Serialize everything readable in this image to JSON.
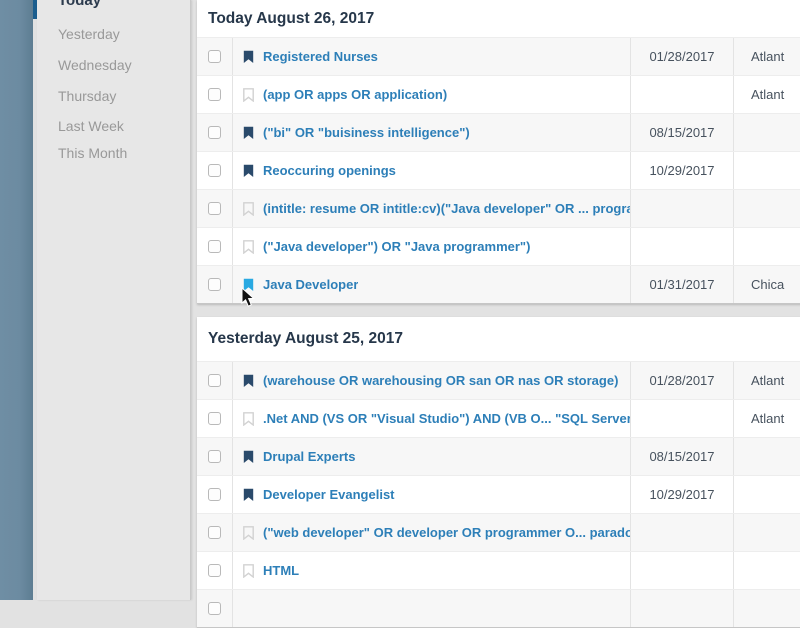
{
  "sidebar": {
    "items": [
      {
        "label": "Today",
        "active": true
      },
      {
        "label": "Yesterday",
        "active": false
      },
      {
        "label": "Wednesday",
        "active": false
      },
      {
        "label": "Thursday",
        "active": false
      },
      {
        "label": "Last Week",
        "active": false
      },
      {
        "label": "This Month",
        "active": false
      }
    ]
  },
  "sections": [
    {
      "title": "Today August 26, 2017",
      "rows": [
        {
          "name": "Registered Nurses",
          "bookmark": "filled",
          "date": "01/28/2017",
          "location": "Atlant"
        },
        {
          "name": "(app OR apps OR application)",
          "bookmark": "outline",
          "date": "",
          "location": "Atlant"
        },
        {
          "name": "(\"bi\" OR \"buisiness intelligence\")",
          "bookmark": "filled",
          "date": "08/15/2017",
          "location": ""
        },
        {
          "name": "Reoccuring openings",
          "bookmark": "filled",
          "date": "10/29/2017",
          "location": ""
        },
        {
          "name": "(intitle: resume OR intitle:cv)(\"Java developer\" OR ... programmer\")",
          "bookmark": "outline",
          "date": "",
          "location": ""
        },
        {
          "name": "(\"Java developer\") OR \"Java programmer\")",
          "bookmark": "outline",
          "date": "",
          "location": ""
        },
        {
          "name": "Java Developer",
          "bookmark": "hover",
          "date": "01/31/2017",
          "location": "Chica"
        }
      ]
    },
    {
      "title": "Yesterday August 25, 2017",
      "rows": [
        {
          "name": "(warehouse OR warehousing OR san OR nas OR storage)",
          "bookmark": "filled",
          "date": "01/28/2017",
          "location": "Atlant"
        },
        {
          "name": ".Net AND (VS OR \"Visual Studio\") AND (VB O... \"SQL Server\"",
          "bookmark": "outline",
          "date": "",
          "location": "Atlant"
        },
        {
          "name": "Drupal Experts",
          "bookmark": "filled",
          "date": "08/15/2017",
          "location": ""
        },
        {
          "name": "Developer Evangelist",
          "bookmark": "filled",
          "date": "10/29/2017",
          "location": ""
        },
        {
          "name": "(\"web developer\" OR developer OR programmer O... paradot",
          "bookmark": "outline",
          "date": "",
          "location": ""
        },
        {
          "name": "HTML",
          "bookmark": "outline",
          "date": "",
          "location": ""
        },
        {
          "name": "",
          "bookmark": "none",
          "date": "",
          "location": ""
        }
      ]
    }
  ],
  "colors": {
    "link_blue": "#2d7fb8",
    "bookmark_filled": "#2a4a6b",
    "bookmark_hover": "#29a9e2",
    "header_navy": "#26374a",
    "rail_blue_gray": "#6f8ea4",
    "active_indicator": "#1b5e8e",
    "sidebar_bg": "#e7e7e7",
    "row_stripe": "#f7f7f7"
  }
}
